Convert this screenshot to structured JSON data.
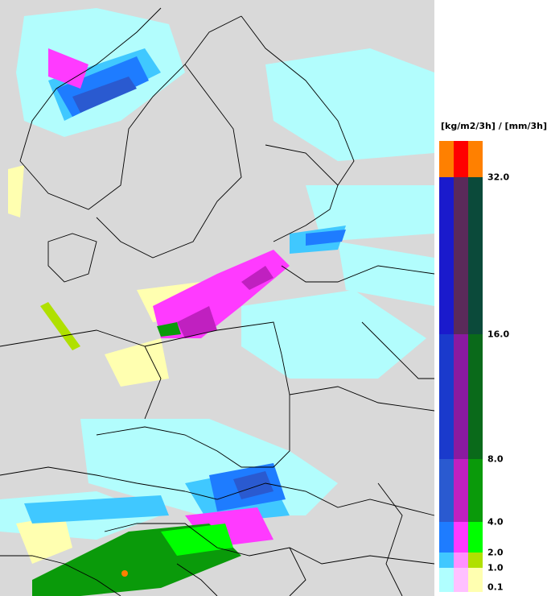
{
  "legend": {
    "unit": "[kg/m2/3h] / [mm/3h]",
    "ticks": [
      "32.0",
      "16.0",
      "8.0",
      "4.0",
      "2.0",
      "1.0",
      "0.1"
    ],
    "bands": [
      {
        "colors": [
          "#ff8000",
          "#ff0000",
          "#ff8000"
        ]
      },
      {
        "colors": [
          "#1a1acc",
          "#5a2a5a",
          "#0b4a3a"
        ]
      },
      {
        "colors": [
          "#1a3acc",
          "#8a1aa0",
          "#0a6a1a"
        ]
      },
      {
        "colors": [
          "#2a5ad0",
          "#c020c0",
          "#0a9a0a"
        ]
      },
      {
        "colors": [
          "#1e7cff",
          "#ff3aff",
          "#00ff00"
        ]
      },
      {
        "colors": [
          "#40c8ff",
          "#ff90ff",
          "#b0e000"
        ]
      },
      {
        "colors": [
          "#b0ffff",
          "#ffc0ff",
          "#ffffb0"
        ]
      }
    ]
  },
  "map": {
    "colors": {
      "land": "#d9d9d9",
      "border": "#000000",
      "cyan": "#b0ffff",
      "lightblue": "#40c8ff",
      "blue": "#1e7cff",
      "darkblue": "#2a5ad0",
      "magenta": "#ff3aff",
      "purple": "#c020c0",
      "yellow": "#ffffb0",
      "lime": "#b0e000",
      "green": "#0a9a0a",
      "orange": "#ff8000"
    }
  }
}
